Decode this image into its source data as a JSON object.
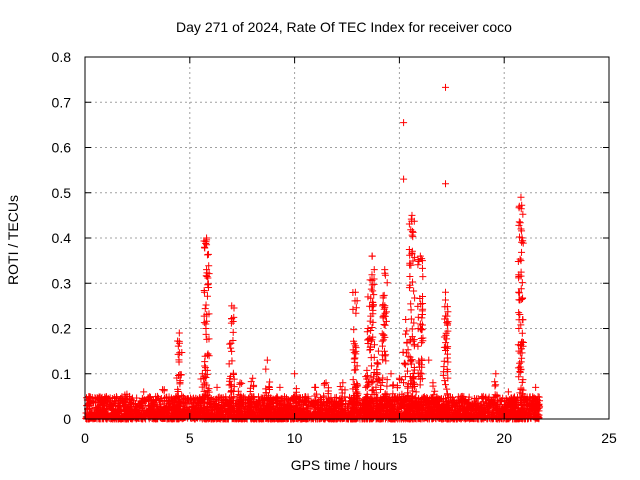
{
  "chart_data": {
    "type": "scatter",
    "title": "Day 271 of 2024, Rate Of TEC Index for receiver coco",
    "xlabel": "GPS time / hours",
    "ylabel": "ROTI / TECUs",
    "xlim": [
      0,
      25
    ],
    "ylim": [
      0,
      0.8
    ],
    "xticks": [
      "0",
      "5",
      "10",
      "15",
      "20",
      "25"
    ],
    "yticks": [
      "0",
      "0.1",
      "0.2",
      "0.3",
      "0.4",
      "0.5",
      "0.6",
      "0.7",
      "0.8"
    ],
    "grid": true,
    "marker": "+",
    "colors": {
      "series": "#ff0000",
      "grid": "#a0a0a0",
      "axes": "#000000"
    },
    "series": [
      {
        "name": "ROTI",
        "baseline": {
          "x_range": [
            0,
            21.7
          ],
          "y_range": [
            0.0,
            0.05
          ],
          "density_per_hour": 160
        },
        "bursts": [
          {
            "x": 1.0,
            "peak": 0.04
          },
          {
            "x": 2.0,
            "peak": 0.055
          },
          {
            "x": 2.8,
            "peak": 0.06
          },
          {
            "x": 3.7,
            "peak": 0.065
          },
          {
            "x": 4.5,
            "peak": 0.19
          },
          {
            "x": 5.6,
            "peak": 0.1
          },
          {
            "x": 5.8,
            "peak": 0.4
          },
          {
            "x": 6.3,
            "peak": 0.07
          },
          {
            "x": 7.0,
            "peak": 0.25
          },
          {
            "x": 7.4,
            "peak": 0.08
          },
          {
            "x": 8.0,
            "peak": 0.09
          },
          {
            "x": 8.7,
            "peak": 0.13
          },
          {
            "x": 9.3,
            "peak": 0.07
          },
          {
            "x": 10.0,
            "peak": 0.1
          },
          {
            "x": 11.0,
            "peak": 0.07
          },
          {
            "x": 11.5,
            "peak": 0.08
          },
          {
            "x": 12.3,
            "peak": 0.08
          },
          {
            "x": 12.9,
            "peak": 0.28
          },
          {
            "x": 13.5,
            "peak": 0.2
          },
          {
            "x": 13.7,
            "peak": 0.36
          },
          {
            "x": 14.0,
            "peak": 0.15
          },
          {
            "x": 14.3,
            "peak": 0.33
          },
          {
            "x": 14.6,
            "peak": 0.1
          },
          {
            "x": 15.0,
            "peak": 0.09
          },
          {
            "x": 15.3,
            "peak": 0.22
          },
          {
            "x": 15.6,
            "peak": 0.45
          },
          {
            "x": 16.0,
            "peak": 0.36
          },
          {
            "x": 16.6,
            "peak": 0.08
          },
          {
            "x": 17.2,
            "peak": 0.28
          },
          {
            "x": 18.0,
            "peak": 0.05
          },
          {
            "x": 19.0,
            "peak": 0.05
          },
          {
            "x": 19.6,
            "peak": 0.1
          },
          {
            "x": 20.2,
            "peak": 0.06
          },
          {
            "x": 20.8,
            "peak": 0.49
          },
          {
            "x": 21.5,
            "peak": 0.07
          }
        ],
        "outliers": [
          {
            "x": 15.2,
            "y": 0.655
          },
          {
            "x": 15.2,
            "y": 0.53
          },
          {
            "x": 17.2,
            "y": 0.733
          },
          {
            "x": 17.2,
            "y": 0.52
          },
          {
            "x": 17.3,
            "y": 0.16
          },
          {
            "x": 20.8,
            "y": 0.42
          },
          {
            "x": 20.8,
            "y": 0.35
          },
          {
            "x": 20.7,
            "y": 0.315
          },
          {
            "x": 20.7,
            "y": 0.2
          },
          {
            "x": 20.8,
            "y": 0.165
          },
          {
            "x": 20.8,
            "y": 0.11
          },
          {
            "x": 15.6,
            "y": 0.365
          },
          {
            "x": 15.5,
            "y": 0.315
          },
          {
            "x": 13.5,
            "y": 0.27
          },
          {
            "x": 13.7,
            "y": 0.36
          },
          {
            "x": 13.8,
            "y": 0.33
          },
          {
            "x": 14.2,
            "y": 0.25
          },
          {
            "x": 16.1,
            "y": 0.35
          },
          {
            "x": 16.0,
            "y": 0.2
          },
          {
            "x": 16.4,
            "y": 0.13
          },
          {
            "x": 5.7,
            "y": 0.28
          },
          {
            "x": 5.8,
            "y": 0.33
          },
          {
            "x": 15.8,
            "y": 0.06
          },
          {
            "x": 14.0,
            "y": 0.02
          }
        ]
      }
    ]
  }
}
